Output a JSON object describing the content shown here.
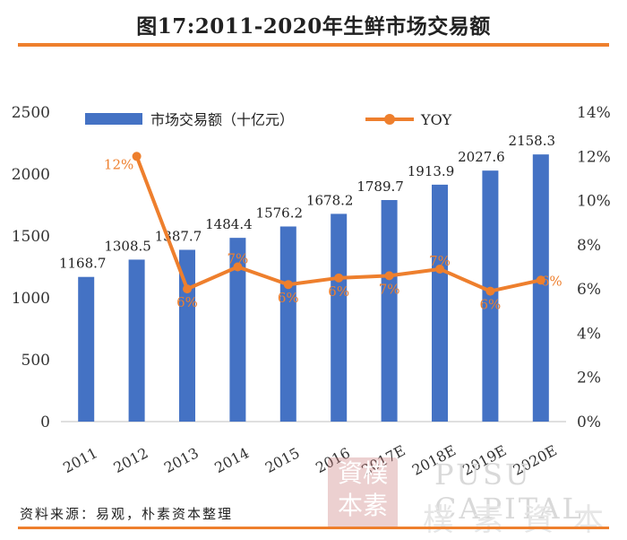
{
  "title": "图17:2011-2020年生鲜市场交易额",
  "source": "资料来源：易观，朴素资本整理",
  "watermark": {
    "en": "PUSU CAPITAL",
    "cn": "樸素資本",
    "seal": "資樸本素"
  },
  "colors": {
    "bar": "#4472c4",
    "line": "#ee7f2d",
    "accent": "#ee7f2d"
  },
  "chart_data": {
    "type": "bar",
    "categories": [
      "2011",
      "2012",
      "2013",
      "2014",
      "2015",
      "2016",
      "2017E",
      "2018E",
      "2019E",
      "2020E"
    ],
    "series": [
      {
        "name": "市场交易额（十亿元）",
        "type": "bar",
        "axis": "left",
        "values": [
          1168.7,
          1308.5,
          1387.7,
          1484.4,
          1576.2,
          1678.2,
          1789.7,
          1913.9,
          2027.6,
          2158.3
        ],
        "labels": [
          "1168.7",
          "1308.5",
          "1387.7",
          "1484.4",
          "1576.2",
          "1678.2",
          "1789.7",
          "1913.9",
          "2027.6",
          "2158.3"
        ]
      },
      {
        "name": "YOY",
        "type": "line",
        "axis": "right",
        "values": [
          null,
          12,
          6,
          7,
          6.2,
          6.5,
          6.6,
          6.9,
          5.9,
          6.4
        ],
        "labels": [
          "",
          "12%",
          "6%",
          "7%",
          "6%",
          "6%",
          "7%",
          "7%",
          "6%",
          "6%"
        ]
      }
    ],
    "yleft": {
      "ylim": [
        0,
        2500
      ],
      "ticks": [
        "0",
        "500",
        "1000",
        "1500",
        "2000",
        "2500"
      ]
    },
    "yright": {
      "ylim": [
        0,
        14
      ],
      "ticks": [
        "0%",
        "2%",
        "4%",
        "6%",
        "8%",
        "10%",
        "12%",
        "14%"
      ]
    },
    "legend": "top",
    "grid": false
  }
}
